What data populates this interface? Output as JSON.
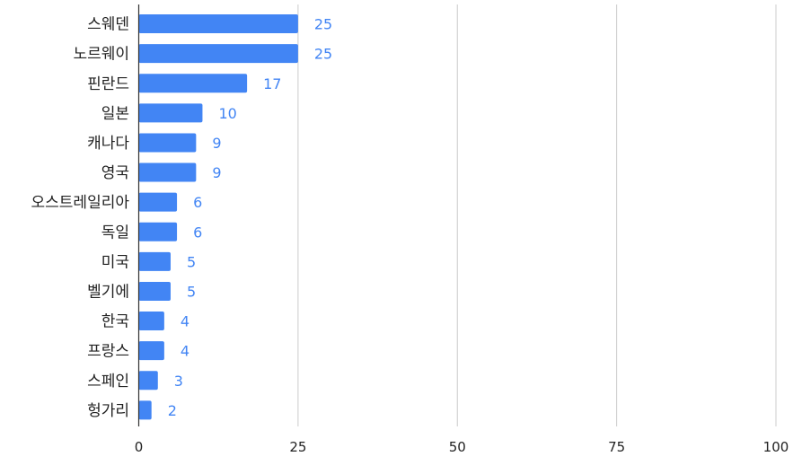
{
  "chart_data": {
    "type": "bar",
    "orientation": "horizontal",
    "categories": [
      "스웨덴",
      "노르웨이",
      "핀란드",
      "일본",
      "캐나다",
      "영국",
      "오스트레일리아",
      "독일",
      "미국",
      "벨기에",
      "한국",
      "프랑스",
      "스페인",
      "헝가리"
    ],
    "values": [
      25,
      25,
      17,
      10,
      9,
      9,
      6,
      6,
      5,
      5,
      4,
      4,
      3,
      2
    ],
    "xlim": [
      0,
      100
    ],
    "xticks": [
      0,
      25,
      50,
      75,
      100
    ],
    "grid": true,
    "bar_color": "#4285f4",
    "label_color": "#4285f4",
    "title": "",
    "xlabel": "",
    "ylabel": ""
  }
}
